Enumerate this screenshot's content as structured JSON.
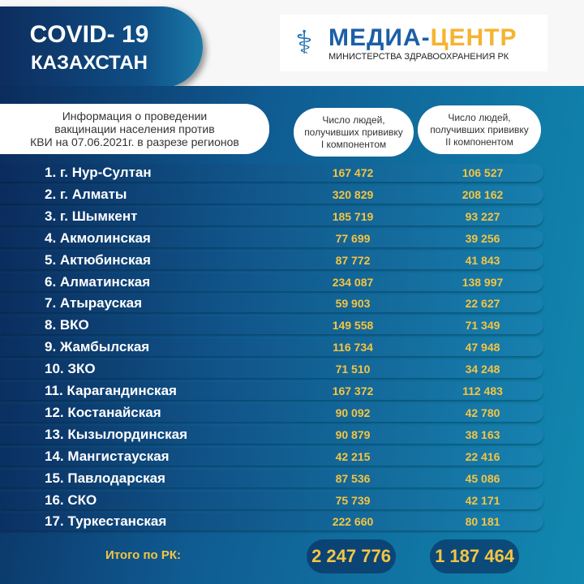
{
  "header": {
    "covid": "COVID- 19",
    "country": "КАЗАХСТАН"
  },
  "logo": {
    "name_part1": "МЕДИА-",
    "name_part2": "ЦЕНТР",
    "subtitle": "МИНИСТЕРСТВА ЗДРАВООХРАНЕНИЯ РК",
    "icon": "caduceus-icon"
  },
  "table": {
    "title_lines": [
      "Информация о проведении",
      "вакцинации населения против",
      "КВИ на 07.06.2021г. в разрезе регионов"
    ],
    "col1_lines": [
      "Число людей,",
      "получивших прививку",
      "I компонентом"
    ],
    "col2_lines": [
      "Число людей,",
      "получивших прививку",
      "II компонентом"
    ],
    "rows": [
      {
        "name": "1. г. Нур-Султан",
        "c1": "167 472",
        "c2": "106 527"
      },
      {
        "name": "2. г. Алматы",
        "c1": "320 829",
        "c2": "208 162"
      },
      {
        "name": "3. г. Шымкент",
        "c1": "185 719",
        "c2": "93 227"
      },
      {
        "name": "4. Акмолинская",
        "c1": "77 699",
        "c2": "39 256"
      },
      {
        "name": "5. Актюбинская",
        "c1": "87 772",
        "c2": "41 843"
      },
      {
        "name": "6. Алматинская",
        "c1": "234 087",
        "c2": "138 997"
      },
      {
        "name": "7. Атырауская",
        "c1": "59 903",
        "c2": "22 627"
      },
      {
        "name": "8. ВКО",
        "c1": "149 558",
        "c2": "71 349"
      },
      {
        "name": "9. Жамбылская",
        "c1": "116 734",
        "c2": "47 948"
      },
      {
        "name": "10. ЗКО",
        "c1": "71 510",
        "c2": "34 248"
      },
      {
        "name": "11. Карагандинская",
        "c1": "167 372",
        "c2": "112 483"
      },
      {
        "name": "12. Костанайская",
        "c1": "90 092",
        "c2": "42 780"
      },
      {
        "name": "13. Кызылординская",
        "c1": "90 879",
        "c2": "38 163"
      },
      {
        "name": "14. Мангистауская",
        "c1": "42 215",
        "c2": "22 416"
      },
      {
        "name": "15. Павлодарская",
        "c1": "87 536",
        "c2": "45 086"
      },
      {
        "name": "16. СКО",
        "c1": "75 739",
        "c2": "42 171"
      },
      {
        "name": "17. Туркестанская",
        "c1": "222 660",
        "c2": "80 181"
      }
    ],
    "total": {
      "label": "Итого по РК:",
      "c1": "2 247 776",
      "c2": "1 187 464"
    }
  },
  "colors": {
    "accent": "#f4c542",
    "dark_blue": "#0b2c5c",
    "teal": "#1189b0"
  }
}
